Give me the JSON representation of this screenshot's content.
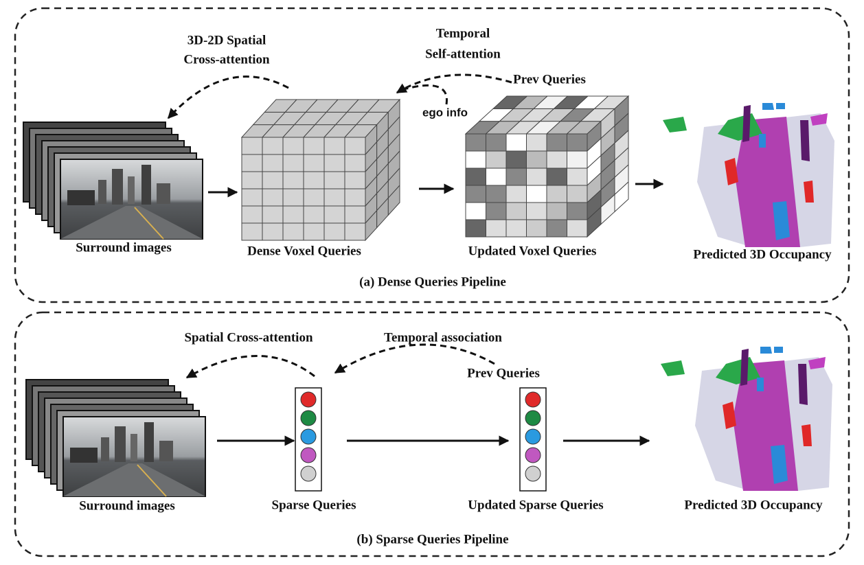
{
  "panels": [
    {
      "caption": "(a) Dense  Queries Pipeline",
      "labels": {
        "spatial_line1": "3D-2D Spatial",
        "spatial_line2": "Cross-attention",
        "temporal_line1": "Temporal",
        "temporal_line2": "Self-attention",
        "prev": "Prev Queries",
        "ego": "ego info",
        "images": "Surround images",
        "queries": "Dense Voxel Queries",
        "updated": "Updated Voxel Queries",
        "output": "Predicted 3D Occupancy"
      }
    },
    {
      "caption": "(b) Sparse Queries Pipeline",
      "labels": {
        "spatial": "Spatial Cross-attention",
        "temporal": "Temporal association",
        "prev": "Prev Queries",
        "images": "Surround images",
        "queries": "Sparse Queries",
        "updated": "Updated Sparse Queries",
        "output": "Predicted 3D Occupancy"
      }
    }
  ]
}
